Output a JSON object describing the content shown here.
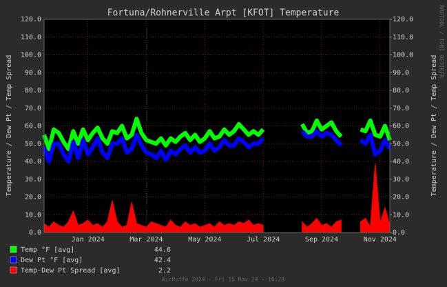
{
  "chart_data": {
    "type": "line",
    "title": "Fortuna/Rohnerville Arpt [KFOT] Temperature",
    "y_label": "Temperature / Dew Pt / Temp Spread",
    "y2_label": "Temperature / Dew Pt / Temp Spread",
    "side_text": "RRDTOOL / TOBI OETIKER",
    "footer": "AirPuffe 2024 - Fri 15 Nov 24 - 16:28",
    "categories": [
      null,
      null,
      null,
      null,
      null,
      null,
      null,
      null,
      null,
      "Jan 2024",
      null,
      null,
      null,
      null,
      null,
      null,
      null,
      null,
      null,
      null,
      null,
      "Mar 2024",
      null,
      null,
      null,
      null,
      null,
      null,
      null,
      null,
      null,
      null,
      null,
      "May 2024",
      null,
      null,
      null,
      null,
      null,
      null,
      null,
      null,
      null,
      null,
      null,
      "Jul 2024",
      null,
      null,
      null,
      null,
      null,
      null,
      null,
      null,
      null,
      null,
      null,
      "Sep 2024",
      null,
      null,
      null,
      null,
      null,
      null,
      null,
      null,
      null,
      null,
      null,
      "Nov 2024",
      null,
      null
    ],
    "ylim": [
      0,
      120
    ],
    "yticks": [
      {
        "value": 0,
        "label": "0.0"
      },
      {
        "value": 10,
        "label": "10.0"
      },
      {
        "value": 20,
        "label": "20.0"
      },
      {
        "value": 30,
        "label": "30.0"
      },
      {
        "value": 40,
        "label": "40.0"
      },
      {
        "value": 50,
        "label": "50.0"
      },
      {
        "value": 60,
        "label": "60.0"
      },
      {
        "value": 70,
        "label": "70.0"
      },
      {
        "value": 80,
        "label": "80.0"
      },
      {
        "value": 90,
        "label": "90.0"
      },
      {
        "value": 100,
        "label": "100.0"
      },
      {
        "value": 110,
        "label": "110.0"
      },
      {
        "value": 120,
        "label": "120.0"
      }
    ],
    "y2lim": [
      0,
      120
    ],
    "y2ticks": [
      {
        "value": 0,
        "label": "0.0"
      },
      {
        "value": 10,
        "label": "10.0"
      },
      {
        "value": 20,
        "label": "20.0"
      },
      {
        "value": 30,
        "label": "30.0"
      },
      {
        "value": 40,
        "label": "40.0"
      },
      {
        "value": 50,
        "label": "50.0"
      },
      {
        "value": 60,
        "label": "60.0"
      },
      {
        "value": 70,
        "label": "70.0"
      },
      {
        "value": 80,
        "label": "80.0"
      },
      {
        "value": 90,
        "label": "90.0"
      },
      {
        "value": 100,
        "label": "100.0"
      },
      {
        "value": 110,
        "label": "110.0"
      },
      {
        "value": 120,
        "label": "120.0"
      }
    ],
    "grid": true,
    "series": [
      {
        "name": "Temp °F [avg]",
        "color": "#00ff00",
        "summary": "44.6",
        "values": [
          55,
          47,
          58,
          56,
          51,
          47,
          57,
          50,
          58,
          52,
          56,
          59,
          53,
          50,
          57,
          56,
          60,
          53,
          55,
          64,
          56,
          52,
          51,
          50,
          53,
          49,
          53,
          51,
          54,
          56,
          52,
          55,
          51,
          53,
          57,
          53,
          54,
          58,
          55,
          57,
          61,
          58,
          55,
          57,
          55,
          58,
          null,
          null,
          null,
          null,
          null,
          null,
          null,
          61,
          56,
          57,
          63,
          58,
          60,
          62,
          57,
          54,
          null,
          null,
          null,
          58,
          57,
          63,
          55,
          54,
          60,
          52
        ]
      },
      {
        "name": "Dew Pt °F [avg]",
        "color": "#0000ff",
        "summary": "42.4",
        "values": [
          48,
          40,
          50,
          50,
          44,
          40,
          51,
          42,
          52,
          44,
          48,
          53,
          45,
          42,
          50,
          50,
          53,
          45,
          47,
          55,
          49,
          45,
          44,
          42,
          46,
          41,
          46,
          44,
          47,
          49,
          45,
          48,
          45,
          46,
          50,
          46,
          48,
          52,
          49,
          49,
          53,
          51,
          48,
          50,
          50,
          53,
          null,
          null,
          null,
          null,
          null,
          null,
          null,
          57,
          54,
          54,
          57,
          54,
          56,
          55,
          52,
          49,
          null,
          null,
          null,
          52,
          50,
          55,
          44,
          46,
          52,
          47
        ]
      },
      {
        "name": "Temp-Dew Pt Spread [avg]",
        "color": "#ff0000",
        "summary": "2.2",
        "values": [
          5,
          3,
          6,
          4,
          3,
          6,
          12,
          4,
          5,
          7,
          4,
          5,
          3,
          6,
          18,
          6,
          3,
          4,
          17,
          5,
          4,
          3,
          6,
          5,
          4,
          3,
          7,
          4,
          3,
          6,
          4,
          5,
          3,
          4,
          5,
          3,
          6,
          4,
          5,
          4,
          6,
          5,
          7,
          4,
          5,
          4,
          null,
          null,
          null,
          null,
          null,
          null,
          null,
          6,
          3,
          5,
          8,
          4,
          5,
          3,
          6,
          7,
          null,
          null,
          null,
          6,
          8,
          3,
          39,
          5,
          14,
          4
        ]
      }
    ]
  }
}
